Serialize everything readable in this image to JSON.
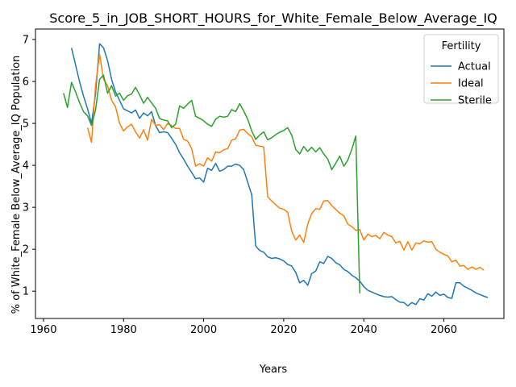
{
  "chart_data": {
    "type": "line",
    "title": "Score_5_in_JOB_SHORT_HOURS_for_White_Female_Below_Average_IQ",
    "xlabel": "Years",
    "ylabel": "% of White_Female Below_Average_IQ Population",
    "xlim": [
      1958,
      2075
    ],
    "ylim": [
      0.35,
      7.25
    ],
    "xticks": [
      1960,
      1980,
      2000,
      2020,
      2040,
      2060
    ],
    "yticks": [
      1,
      2,
      3,
      4,
      5,
      6,
      7
    ],
    "grid": false,
    "legend": {
      "title": "Fertility",
      "position": "top-right"
    },
    "series": [
      {
        "name": "Actual",
        "color": "#1f77b4",
        "points": [
          [
            1967,
            6.8
          ],
          [
            1968,
            6.4
          ],
          [
            1969,
            6.0
          ],
          [
            1970,
            5.65
          ],
          [
            1971,
            5.35
          ],
          [
            1972,
            5.0
          ],
          [
            1973,
            5.7
          ],
          [
            1974,
            6.9
          ],
          [
            1975,
            6.8
          ],
          [
            1976,
            6.5
          ],
          [
            1977,
            6.05
          ],
          [
            1978,
            5.75
          ],
          [
            1979,
            5.55
          ],
          [
            1980,
            5.35
          ],
          [
            1981,
            5.3
          ],
          [
            1982,
            5.25
          ],
          [
            1983,
            5.32
          ],
          [
            1984,
            5.12
          ],
          [
            1985,
            5.25
          ],
          [
            1986,
            5.18
          ],
          [
            1987,
            5.28
          ],
          [
            1988,
            4.95
          ],
          [
            1989,
            4.78
          ],
          [
            1990,
            4.8
          ],
          [
            1991,
            4.78
          ],
          [
            1992,
            4.65
          ],
          [
            1993,
            4.5
          ],
          [
            1994,
            4.3
          ],
          [
            1995,
            4.15
          ],
          [
            1996,
            3.98
          ],
          [
            1997,
            3.83
          ],
          [
            1998,
            3.68
          ],
          [
            1999,
            3.7
          ],
          [
            2000,
            3.6
          ],
          [
            2001,
            3.93
          ],
          [
            2002,
            3.88
          ],
          [
            2003,
            4.05
          ],
          [
            2004,
            3.86
          ],
          [
            2005,
            3.9
          ],
          [
            2006,
            3.98
          ],
          [
            2007,
            3.98
          ],
          [
            2008,
            4.03
          ],
          [
            2009,
            4.0
          ],
          [
            2010,
            3.9
          ],
          [
            2011,
            3.6
          ],
          [
            2012,
            3.3
          ],
          [
            2013,
            2.08
          ],
          [
            2014,
            1.97
          ],
          [
            2015,
            1.93
          ],
          [
            2016,
            1.82
          ],
          [
            2017,
            1.78
          ],
          [
            2018,
            1.8
          ],
          [
            2019,
            1.77
          ],
          [
            2020,
            1.72
          ],
          [
            2021,
            1.64
          ],
          [
            2022,
            1.6
          ],
          [
            2023,
            1.45
          ],
          [
            2024,
            1.2
          ],
          [
            2025,
            1.26
          ],
          [
            2026,
            1.14
          ],
          [
            2027,
            1.42
          ],
          [
            2028,
            1.48
          ],
          [
            2029,
            1.7
          ],
          [
            2030,
            1.66
          ],
          [
            2031,
            1.83
          ],
          [
            2032,
            1.78
          ],
          [
            2033,
            1.68
          ],
          [
            2034,
            1.63
          ],
          [
            2035,
            1.52
          ],
          [
            2036,
            1.47
          ],
          [
            2037,
            1.38
          ],
          [
            2038,
            1.32
          ],
          [
            2039,
            1.24
          ],
          [
            2040,
            1.11
          ],
          [
            2041,
            1.02
          ],
          [
            2042,
            0.98
          ],
          [
            2043,
            0.94
          ],
          [
            2044,
            0.9
          ],
          [
            2045,
            0.87
          ],
          [
            2046,
            0.86
          ],
          [
            2047,
            0.87
          ],
          [
            2048,
            0.8
          ],
          [
            2049,
            0.74
          ],
          [
            2050,
            0.73
          ],
          [
            2051,
            0.65
          ],
          [
            2052,
            0.73
          ],
          [
            2053,
            0.68
          ],
          [
            2054,
            0.82
          ],
          [
            2055,
            0.79
          ],
          [
            2056,
            0.94
          ],
          [
            2057,
            0.88
          ],
          [
            2058,
            0.98
          ],
          [
            2059,
            0.9
          ],
          [
            2060,
            0.93
          ],
          [
            2061,
            0.85
          ],
          [
            2062,
            0.83
          ],
          [
            2063,
            1.2
          ],
          [
            2064,
            1.2
          ],
          [
            2065,
            1.12
          ],
          [
            2066,
            1.07
          ],
          [
            2067,
            1.02
          ],
          [
            2068,
            0.96
          ],
          [
            2069,
            0.92
          ],
          [
            2070,
            0.88
          ],
          [
            2071,
            0.85
          ]
        ]
      },
      {
        "name": "Ideal",
        "color": "#ff7f0e",
        "points": [
          [
            1971,
            4.9
          ],
          [
            1972,
            4.55
          ],
          [
            1973,
            5.9
          ],
          [
            1974,
            6.65
          ],
          [
            1975,
            6.05
          ],
          [
            1976,
            5.9
          ],
          [
            1977,
            5.55
          ],
          [
            1978,
            5.4
          ],
          [
            1979,
            5.0
          ],
          [
            1980,
            4.82
          ],
          [
            1981,
            4.92
          ],
          [
            1982,
            4.98
          ],
          [
            1983,
            4.8
          ],
          [
            1984,
            4.65
          ],
          [
            1985,
            4.85
          ],
          [
            1986,
            4.6
          ],
          [
            1987,
            5.1
          ],
          [
            1988,
            4.95
          ],
          [
            1989,
            4.97
          ],
          [
            1990,
            4.85
          ],
          [
            1991,
            5.0
          ],
          [
            1992,
            4.95
          ],
          [
            1993,
            4.88
          ],
          [
            1994,
            4.88
          ],
          [
            1995,
            4.62
          ],
          [
            1996,
            4.58
          ],
          [
            1997,
            4.4
          ],
          [
            1998,
            3.98
          ],
          [
            1999,
            4.04
          ],
          [
            2000,
            3.98
          ],
          [
            2001,
            4.18
          ],
          [
            2002,
            4.1
          ],
          [
            2003,
            4.32
          ],
          [
            2004,
            4.3
          ],
          [
            2005,
            4.37
          ],
          [
            2006,
            4.4
          ],
          [
            2007,
            4.6
          ],
          [
            2008,
            4.63
          ],
          [
            2009,
            4.84
          ],
          [
            2010,
            4.86
          ],
          [
            2011,
            4.76
          ],
          [
            2012,
            4.68
          ],
          [
            2013,
            4.48
          ],
          [
            2014,
            4.46
          ],
          [
            2015,
            4.44
          ],
          [
            2016,
            3.25
          ],
          [
            2017,
            3.15
          ],
          [
            2018,
            3.06
          ],
          [
            2019,
            2.98
          ],
          [
            2020,
            2.95
          ],
          [
            2021,
            2.88
          ],
          [
            2022,
            2.43
          ],
          [
            2023,
            2.22
          ],
          [
            2024,
            2.34
          ],
          [
            2025,
            2.16
          ],
          [
            2026,
            2.6
          ],
          [
            2027,
            2.85
          ],
          [
            2028,
            2.97
          ],
          [
            2029,
            2.95
          ],
          [
            2030,
            3.15
          ],
          [
            2031,
            3.16
          ],
          [
            2032,
            3.04
          ],
          [
            2033,
            2.95
          ],
          [
            2034,
            2.86
          ],
          [
            2035,
            2.8
          ],
          [
            2036,
            2.6
          ],
          [
            2037,
            2.54
          ],
          [
            2038,
            2.45
          ],
          [
            2039,
            2.47
          ],
          [
            2040,
            2.22
          ],
          [
            2041,
            2.36
          ],
          [
            2042,
            2.3
          ],
          [
            2043,
            2.33
          ],
          [
            2044,
            2.25
          ],
          [
            2045,
            2.4
          ],
          [
            2046,
            2.34
          ],
          [
            2047,
            2.3
          ],
          [
            2048,
            2.15
          ],
          [
            2049,
            2.19
          ],
          [
            2050,
            1.98
          ],
          [
            2051,
            2.18
          ],
          [
            2052,
            1.98
          ],
          [
            2053,
            2.15
          ],
          [
            2054,
            2.13
          ],
          [
            2055,
            2.2
          ],
          [
            2056,
            2.17
          ],
          [
            2057,
            2.18
          ],
          [
            2058,
            2.0
          ],
          [
            2059,
            1.93
          ],
          [
            2060,
            1.88
          ],
          [
            2061,
            1.84
          ],
          [
            2062,
            1.7
          ],
          [
            2063,
            1.74
          ],
          [
            2064,
            1.6
          ],
          [
            2065,
            1.61
          ],
          [
            2066,
            1.52
          ],
          [
            2067,
            1.58
          ],
          [
            2068,
            1.52
          ],
          [
            2069,
            1.57
          ],
          [
            2070,
            1.5
          ]
        ]
      },
      {
        "name": "Sterile",
        "color": "#2ca02c",
        "points": [
          [
            1965,
            5.72
          ],
          [
            1966,
            5.38
          ],
          [
            1967,
            5.98
          ],
          [
            1968,
            5.75
          ],
          [
            1969,
            5.5
          ],
          [
            1970,
            5.28
          ],
          [
            1971,
            5.18
          ],
          [
            1972,
            4.95
          ],
          [
            1973,
            5.32
          ],
          [
            1974,
            6.05
          ],
          [
            1975,
            6.15
          ],
          [
            1976,
            5.72
          ],
          [
            1977,
            5.9
          ],
          [
            1978,
            5.65
          ],
          [
            1979,
            5.72
          ],
          [
            1980,
            5.55
          ],
          [
            1981,
            5.66
          ],
          [
            1982,
            5.7
          ],
          [
            1983,
            5.86
          ],
          [
            1984,
            5.68
          ],
          [
            1985,
            5.48
          ],
          [
            1986,
            5.62
          ],
          [
            1987,
            5.49
          ],
          [
            1988,
            5.36
          ],
          [
            1989,
            5.12
          ],
          [
            1990,
            5.08
          ],
          [
            1991,
            5.06
          ],
          [
            1992,
            4.9
          ],
          [
            1993,
            4.98
          ],
          [
            1994,
            5.42
          ],
          [
            1995,
            5.36
          ],
          [
            1996,
            5.46
          ],
          [
            1997,
            5.55
          ],
          [
            1998,
            5.17
          ],
          [
            1999,
            5.12
          ],
          [
            2000,
            5.06
          ],
          [
            2001,
            4.98
          ],
          [
            2002,
            4.93
          ],
          [
            2003,
            5.1
          ],
          [
            2004,
            5.17
          ],
          [
            2005,
            5.15
          ],
          [
            2006,
            5.17
          ],
          [
            2007,
            5.33
          ],
          [
            2008,
            5.28
          ],
          [
            2009,
            5.47
          ],
          [
            2010,
            5.3
          ],
          [
            2011,
            5.1
          ],
          [
            2012,
            4.82
          ],
          [
            2013,
            4.62
          ],
          [
            2014,
            4.72
          ],
          [
            2015,
            4.8
          ],
          [
            2016,
            4.61
          ],
          [
            2017,
            4.66
          ],
          [
            2018,
            4.73
          ],
          [
            2019,
            4.79
          ],
          [
            2020,
            4.83
          ],
          [
            2021,
            4.9
          ],
          [
            2022,
            4.72
          ],
          [
            2023,
            4.38
          ],
          [
            2024,
            4.27
          ],
          [
            2025,
            4.45
          ],
          [
            2026,
            4.33
          ],
          [
            2027,
            4.43
          ],
          [
            2028,
            4.32
          ],
          [
            2029,
            4.42
          ],
          [
            2030,
            4.27
          ],
          [
            2031,
            4.15
          ],
          [
            2032,
            3.9
          ],
          [
            2033,
            4.05
          ],
          [
            2034,
            4.22
          ],
          [
            2035,
            3.98
          ],
          [
            2036,
            4.12
          ],
          [
            2037,
            4.38
          ],
          [
            2038,
            4.7
          ],
          [
            2039,
            0.95
          ]
        ]
      }
    ]
  }
}
